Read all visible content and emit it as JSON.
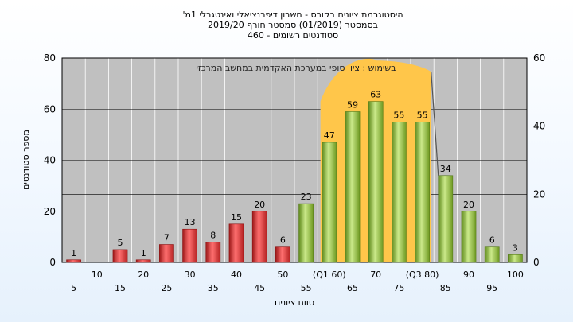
{
  "chart_data": {
    "type": "bar",
    "title_lines": [
      "היסטוגרמת ציונים בקורס - חשבון דיפרנציאלי ואינטגרלי 1מ'",
      "בסמסטר  (01/2019)  סמסטר חורף 2019/20",
      "סטודנטים רשומים - 460"
    ],
    "annotation": "בשימוש : ציון סופי במערכת האקדמית במחשב המרכזי",
    "xlabel": "טווח ציונים",
    "ylabel": "מספר סטודנטים",
    "ylim": [
      0,
      80
    ],
    "y_ticks": [
      0,
      20,
      40,
      60,
      80
    ],
    "y2lim": [
      0,
      60
    ],
    "y2_ticks": [
      0,
      20,
      40,
      60
    ],
    "categories": [
      "5",
      "10",
      "15",
      "20",
      "25",
      "30",
      "35",
      "40",
      "45",
      "50",
      "55",
      "(Q1 60)",
      "65",
      "70",
      "75",
      "(Q3 80)",
      "85",
      "90",
      "95",
      "100"
    ],
    "values": [
      1,
      0,
      5,
      1,
      7,
      13,
      8,
      15,
      20,
      6,
      23,
      47,
      59,
      63,
      55,
      55,
      34,
      20,
      6,
      3
    ],
    "data_labels": [
      "1",
      "",
      "5",
      "1",
      "7",
      "13",
      "8",
      "15",
      "20",
      "6",
      "23",
      "47",
      "59",
      "63",
      "55",
      "55",
      "34",
      "20",
      "6",
      "3"
    ],
    "quartile_band": {
      "start_index": 11,
      "end_index": 15
    },
    "grid": true,
    "colors": {
      "fail_bar": "#e23b3b",
      "pass_bar": "#9ccc3d",
      "quartile_area": "#ffc64a",
      "plot_background": "#c0c0c0"
    }
  }
}
